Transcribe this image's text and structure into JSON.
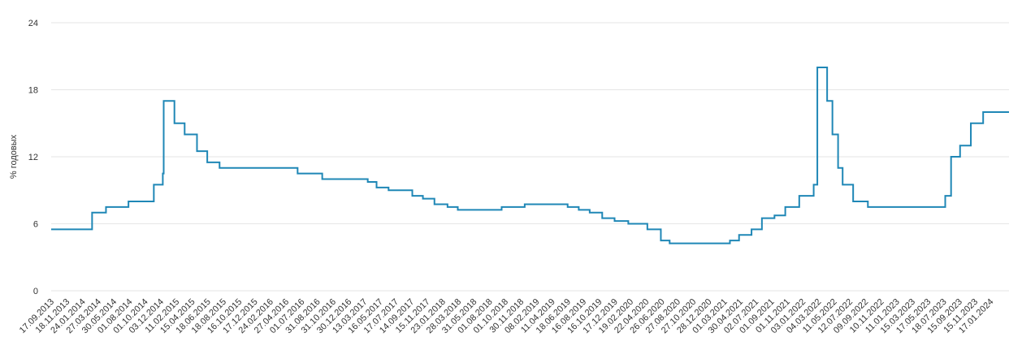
{
  "chart_data": {
    "type": "line",
    "ylabel": "% годовых",
    "ylim": [
      0,
      24
    ],
    "yticks": [
      0,
      6,
      12,
      18,
      24
    ],
    "grid": true,
    "step": true,
    "xlim": [
      "17.09.2013",
      "31.03.2024"
    ],
    "xticks": [
      "17.09.2013",
      "18.11.2013",
      "24.01.2014",
      "27.03.2014",
      "30.05.2014",
      "01.08.2014",
      "01.10.2014",
      "03.12.2014",
      "11.02.2015",
      "15.04.2015",
      "18.06.2015",
      "18.08.2015",
      "16.10.2015",
      "17.12.2015",
      "24.02.2016",
      "27.04.2016",
      "01.07.2016",
      "31.08.2016",
      "31.10.2016",
      "30.12.2016",
      "13.03.2017",
      "16.05.2017",
      "17.07.2017",
      "14.09.2017",
      "15.11.2017",
      "23.01.2018",
      "28.03.2018",
      "31.05.2018",
      "01.08.2018",
      "01.10.2018",
      "30.11.2018",
      "08.02.2019",
      "11.04.2019",
      "18.06.2019",
      "16.08.2019",
      "16.10.2019",
      "17.12.2019",
      "19.02.2020",
      "22.04.2020",
      "26.06.2020",
      "27.08.2020",
      "27.10.2020",
      "28.12.2020",
      "01.03.2021",
      "30.04.2021",
      "02.07.2021",
      "01.09.2021",
      "01.11.2021",
      "03.01.2022",
      "04.03.2022",
      "11.05.2022",
      "12.07.2022",
      "09.09.2022",
      "10.11.2022",
      "11.01.2023",
      "15.03.2023",
      "17.05.2023",
      "18.07.2023",
      "15.09.2023",
      "15.11.2023",
      "17.01.2024"
    ],
    "series": [
      {
        "color": "#1f87b6",
        "x": [
          "17.09.2013",
          "03.03.2014",
          "28.04.2014",
          "28.07.2014",
          "05.11.2014",
          "12.12.2014",
          "16.12.2014",
          "02.02.2015",
          "16.03.2015",
          "05.05.2015",
          "16.06.2015",
          "03.08.2015",
          "14.06.2016",
          "19.09.2016",
          "27.03.2017",
          "02.05.2017",
          "19.06.2017",
          "18.09.2017",
          "30.10.2017",
          "18.12.2017",
          "12.02.2018",
          "26.03.2018",
          "17.09.2018",
          "17.12.2018",
          "17.06.2019",
          "29.07.2019",
          "09.09.2019",
          "28.10.2019",
          "16.12.2019",
          "10.02.2020",
          "27.04.2020",
          "22.06.2020",
          "27.07.2020",
          "22.03.2021",
          "26.04.2021",
          "15.06.2021",
          "26.07.2021",
          "13.09.2021",
          "25.10.2021",
          "20.12.2021",
          "14.02.2022",
          "28.02.2022",
          "11.04.2022",
          "04.05.2022",
          "27.05.2022",
          "14.06.2022",
          "25.07.2022",
          "19.09.2022",
          "24.07.2023",
          "15.08.2023",
          "18.09.2023",
          "30.10.2023",
          "18.12.2023"
        ],
        "values": [
          5.5,
          7,
          7.5,
          8,
          9.5,
          10.5,
          17,
          15,
          14,
          12.5,
          11.5,
          11,
          10.5,
          10,
          9.75,
          9.25,
          9,
          8.5,
          8.25,
          7.75,
          7.5,
          7.25,
          7.5,
          7.75,
          7.5,
          7.25,
          7,
          6.5,
          6.25,
          6,
          5.5,
          4.5,
          4.25,
          4.5,
          5,
          5.5,
          6.5,
          6.75,
          7.5,
          8.5,
          9.5,
          20,
          17,
          14,
          11,
          9.5,
          8,
          7.5,
          8.5,
          12,
          13,
          15,
          16
        ]
      }
    ]
  }
}
